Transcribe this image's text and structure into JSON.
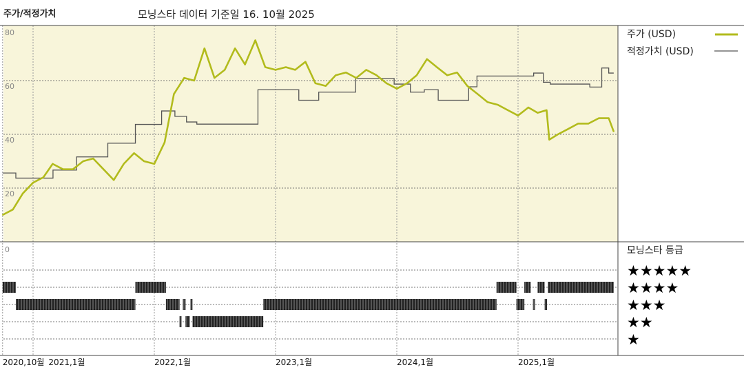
{
  "header": {
    "title": "주가/적정가치",
    "subtitle": "모닝스타 데이터 기준일 16. 10월 2025"
  },
  "colors": {
    "plot_background": "#f8f5da",
    "price": "#b2bb1c",
    "fair_value": "#555555",
    "rating_bar": "#333333"
  },
  "chart_data": [
    {
      "type": "line",
      "title": "주가/적정가치",
      "ylim": [
        0,
        80
      ],
      "yticks": [
        20,
        40,
        60,
        80
      ],
      "grid": true,
      "legend": "right",
      "xticks": [
        {
          "date": "2020-10-01",
          "label": "2020,10월"
        },
        {
          "date": "2021-01-01",
          "label": "2021,1월"
        },
        {
          "date": "2022-01-01",
          "label": "2022,1월"
        },
        {
          "date": "2023-01-01",
          "label": "2023,1월"
        },
        {
          "date": "2024-01-01",
          "label": "2024,1월"
        },
        {
          "date": "2025-01-01",
          "label": "2025,1월"
        }
      ],
      "series": [
        {
          "name": "주가 (USD)",
          "style": "line",
          "points": [
            [
              "2020-10-01",
              10
            ],
            [
              "2020-11-01",
              12
            ],
            [
              "2020-12-01",
              18
            ],
            [
              "2021-01-01",
              22
            ],
            [
              "2021-02-01",
              24
            ],
            [
              "2021-03-01",
              29
            ],
            [
              "2021-04-01",
              27
            ],
            [
              "2021-05-01",
              27
            ],
            [
              "2021-06-01",
              30
            ],
            [
              "2021-07-01",
              31
            ],
            [
              "2021-08-01",
              27
            ],
            [
              "2021-09-01",
              23
            ],
            [
              "2021-10-01",
              29
            ],
            [
              "2021-11-01",
              33
            ],
            [
              "2021-12-01",
              30
            ],
            [
              "2022-01-01",
              29
            ],
            [
              "2022-02-01",
              37
            ],
            [
              "2022-03-01",
              55
            ],
            [
              "2022-04-01",
              61
            ],
            [
              "2022-05-01",
              60
            ],
            [
              "2022-06-01",
              72
            ],
            [
              "2022-07-01",
              61
            ],
            [
              "2022-08-01",
              64
            ],
            [
              "2022-09-01",
              72
            ],
            [
              "2022-10-01",
              66
            ],
            [
              "2022-11-01",
              75
            ],
            [
              "2022-12-01",
              65
            ],
            [
              "2023-01-01",
              64
            ],
            [
              "2023-02-01",
              65
            ],
            [
              "2023-03-01",
              64
            ],
            [
              "2023-04-01",
              67
            ],
            [
              "2023-05-01",
              59
            ],
            [
              "2023-06-01",
              58
            ],
            [
              "2023-07-01",
              62
            ],
            [
              "2023-08-01",
              63
            ],
            [
              "2023-09-01",
              61
            ],
            [
              "2023-10-01",
              64
            ],
            [
              "2023-11-01",
              62
            ],
            [
              "2023-12-01",
              59
            ],
            [
              "2024-01-01",
              57
            ],
            [
              "2024-02-01",
              59
            ],
            [
              "2024-03-01",
              62
            ],
            [
              "2024-04-01",
              68
            ],
            [
              "2024-05-01",
              65
            ],
            [
              "2024-06-01",
              62
            ],
            [
              "2024-07-01",
              63
            ],
            [
              "2024-08-01",
              58
            ],
            [
              "2024-09-01",
              55
            ],
            [
              "2024-10-01",
              52
            ],
            [
              "2024-11-01",
              51
            ],
            [
              "2024-12-01",
              49
            ],
            [
              "2025-01-01",
              47
            ],
            [
              "2025-02-01",
              50
            ],
            [
              "2025-03-01",
              48
            ],
            [
              "2025-03-28",
              49
            ],
            [
              "2025-04-05",
              38
            ],
            [
              "2025-05-01",
              40
            ],
            [
              "2025-06-01",
              42
            ],
            [
              "2025-07-01",
              44
            ],
            [
              "2025-08-01",
              44
            ],
            [
              "2025-09-01",
              46
            ],
            [
              "2025-10-01",
              46
            ],
            [
              "2025-10-16",
              41
            ]
          ]
        },
        {
          "name": "적정가치 (USD)",
          "style": "step",
          "points": [
            [
              "2020-10-01",
              25.6
            ],
            [
              "2020-11-10",
              23.7
            ],
            [
              "2021-03-02",
              26.7
            ],
            [
              "2021-05-12",
              31.6
            ],
            [
              "2021-08-14",
              36.7
            ],
            [
              "2021-11-05",
              43.7
            ],
            [
              "2022-01-23",
              48.7
            ],
            [
              "2022-03-04",
              46.7
            ],
            [
              "2022-04-08",
              44.6
            ],
            [
              "2022-05-09",
              43.8
            ],
            [
              "2022-11-09",
              56.6
            ],
            [
              "2023-03-12",
              52.7
            ],
            [
              "2023-05-11",
              55.7
            ],
            [
              "2023-08-30",
              60.8
            ],
            [
              "2023-12-24",
              58.7
            ],
            [
              "2024-02-11",
              55.7
            ],
            [
              "2024-03-24",
              56.6
            ],
            [
              "2024-05-05",
              52.7
            ],
            [
              "2024-08-05",
              57.7
            ],
            [
              "2024-08-30",
              61.7
            ],
            [
              "2025-02-17",
              62.8
            ],
            [
              "2025-03-18",
              59.4
            ],
            [
              "2025-04-08",
              58.7
            ],
            [
              "2025-08-05",
              57.6
            ],
            [
              "2025-09-10",
              64.7
            ],
            [
              "2025-10-01",
              62.8
            ],
            [
              "2025-10-16",
              62.8
            ]
          ]
        }
      ]
    },
    {
      "type": "timeline",
      "title": "모닝스타 등급",
      "ylabel_min": "0",
      "levels": [
        "★★★★★",
        "★★★★",
        "★★★",
        "★★",
        "★"
      ],
      "periods": [
        {
          "stars": 4,
          "start": "2020-10-01",
          "end": "2020-11-10"
        },
        {
          "stars": 3,
          "start": "2020-11-10",
          "end": "2021-11-05"
        },
        {
          "stars": 4,
          "start": "2021-11-05",
          "end": "2022-02-05"
        },
        {
          "stars": 3,
          "start": "2022-02-05",
          "end": "2022-03-18"
        },
        {
          "stars": 2,
          "start": "2022-03-18",
          "end": "2022-03-24"
        },
        {
          "stars": 3,
          "start": "2022-03-28",
          "end": "2022-04-05"
        },
        {
          "stars": 2,
          "start": "2022-04-05",
          "end": "2022-04-18"
        },
        {
          "stars": 3,
          "start": "2022-04-20",
          "end": "2022-04-26"
        },
        {
          "stars": 2,
          "start": "2022-04-26",
          "end": "2022-11-25"
        },
        {
          "stars": 3,
          "start": "2022-11-25",
          "end": "2024-10-28"
        },
        {
          "stars": 4,
          "start": "2024-10-28",
          "end": "2024-12-27"
        },
        {
          "stars": 3,
          "start": "2024-12-27",
          "end": "2025-01-20"
        },
        {
          "stars": 4,
          "start": "2025-01-20",
          "end": "2025-02-08"
        },
        {
          "stars": 3,
          "start": "2025-02-15",
          "end": "2025-02-21"
        },
        {
          "stars": 4,
          "start": "2025-03-01",
          "end": "2025-03-22"
        },
        {
          "stars": 3,
          "start": "2025-03-22",
          "end": "2025-03-29"
        },
        {
          "stars": 4,
          "start": "2025-04-01",
          "end": "2025-10-16"
        }
      ]
    }
  ]
}
